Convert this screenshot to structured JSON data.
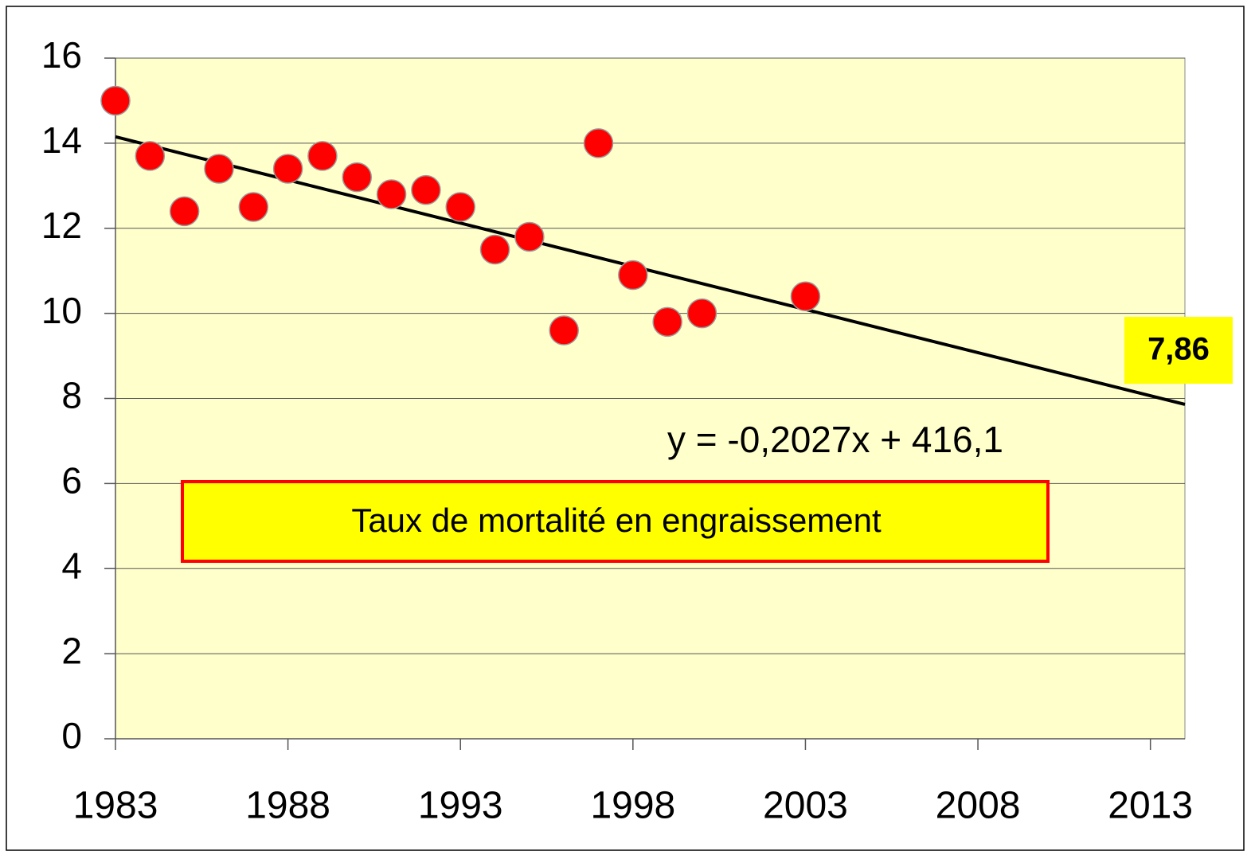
{
  "chart_data": {
    "type": "scatter",
    "title": "Taux de mortalité en engraissement",
    "annotation": "y = -0,2027x + 416,1",
    "series": [
      {
        "color": "#ff0000",
        "x": [
          1983,
          1984,
          1985,
          1986,
          1987,
          1988,
          1989,
          1990,
          1991,
          1992,
          1993,
          1994,
          1995,
          1996,
          1997,
          1998,
          1999,
          2000,
          2003
        ],
        "values": [
          15.0,
          13.7,
          12.4,
          13.4,
          12.5,
          13.4,
          13.7,
          13.2,
          12.8,
          12.9,
          12.5,
          11.5,
          11.8,
          9.6,
          14.0,
          10.9,
          9.8,
          10.0,
          10.4
        ]
      }
    ],
    "trendline": {
      "color": "#000000",
      "x": [
        1983,
        2014
      ],
      "values": [
        14.15,
        7.86
      ],
      "value_labels": [
        null,
        "7,86"
      ]
    },
    "xlim": [
      1983,
      2014
    ],
    "xticks": [
      1983,
      1988,
      1993,
      1998,
      2003,
      2008,
      2013
    ],
    "ylim": [
      0,
      16
    ],
    "yticks": [
      0,
      2,
      4,
      6,
      8,
      10,
      12,
      14,
      16
    ],
    "grid": true,
    "background": "#ffffcc"
  }
}
